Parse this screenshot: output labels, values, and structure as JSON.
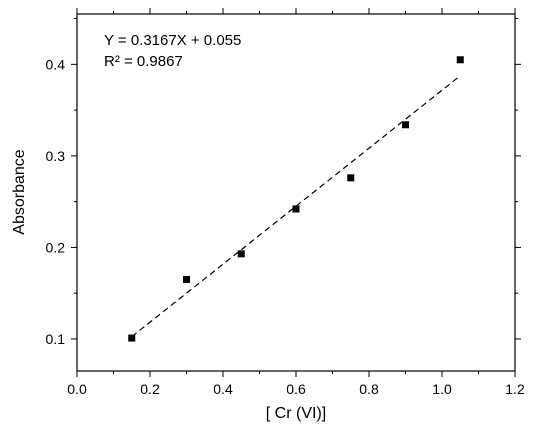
{
  "chart_data": {
    "type": "scatter",
    "xlabel": "[ Cr (VI)]",
    "ylabel": "Absorbance",
    "xlim": [
      0.0,
      1.2
    ],
    "ylim": [
      0.065,
      0.455
    ],
    "grid": false,
    "xticks": [
      "0.0",
      "0.2",
      "0.4",
      "0.6",
      "0.8",
      "1.0",
      "1.2"
    ],
    "yticks": [
      "0.1",
      "0.2",
      "0.3",
      "0.4"
    ],
    "series": [
      {
        "marker": "square",
        "color": "#000000",
        "x": [
          0.15,
          0.3,
          0.45,
          0.6,
          0.75,
          0.9,
          1.05
        ],
        "y": [
          0.101,
          0.165,
          0.193,
          0.242,
          0.276,
          0.334,
          0.405
        ]
      }
    ],
    "fit_line": {
      "style": "dashed",
      "slope": 0.3167,
      "intercept": 0.055,
      "x_range": [
        0.15,
        1.05
      ]
    },
    "annotations": [
      "Y = 0.3167X + 0.055",
      "R² = 0.9867"
    ]
  }
}
